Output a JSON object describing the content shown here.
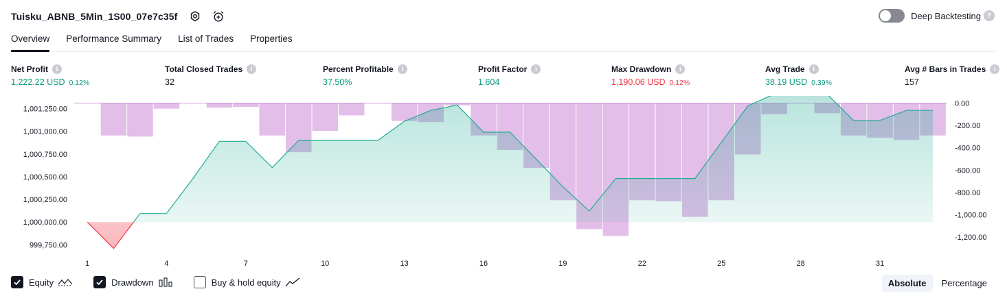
{
  "header": {
    "title": "Tuisku_ABNB_5Min_1S00_07e7c35f",
    "settings_icon": "gear-icon",
    "alert_icon": "alarm-clock-plus-icon",
    "deep_backtesting_label": "Deep Backtesting",
    "deep_backtesting_enabled": false,
    "help_glyph": "?"
  },
  "tabs": [
    {
      "label": "Overview",
      "active": true
    },
    {
      "label": "Performance Summary",
      "active": false
    },
    {
      "label": "List of Trades",
      "active": false
    },
    {
      "label": "Properties",
      "active": false
    }
  ],
  "metrics": [
    {
      "label": "Net Profit",
      "value": "1,222.22 USD",
      "pct": "0.12%",
      "color": "green"
    },
    {
      "label": "Total Closed Trades",
      "value": "32",
      "pct": "",
      "color": "dark"
    },
    {
      "label": "Percent Profitable",
      "value": "37.50%",
      "pct": "",
      "color": "green"
    },
    {
      "label": "Profit Factor",
      "value": "1.604",
      "pct": "",
      "color": "green"
    },
    {
      "label": "Max Drawdown",
      "value": "1,190.06 USD",
      "pct": "0.12%",
      "color": "red"
    },
    {
      "label": "Avg Trade",
      "value": "38.19 USD",
      "pct": "0.39%",
      "color": "green"
    },
    {
      "label": "Avg # Bars in Trades",
      "value": "157",
      "pct": "",
      "color": "dark"
    }
  ],
  "chart_data": {
    "type": "line",
    "x_ticks": [
      1,
      4,
      7,
      10,
      13,
      16,
      19,
      22,
      25,
      28,
      31
    ],
    "x_range": [
      1,
      33
    ],
    "left_axis": {
      "ticks": [
        "1,001,250.00",
        "1,001,000.00",
        "1,000,750.00",
        "1,000,500.00",
        "1,000,250.00",
        "1,000,000.00",
        "999,750.00"
      ],
      "tick_values": [
        1001250,
        1001000,
        1000750,
        1000500,
        1000250,
        1000000,
        999750
      ],
      "range": [
        999700,
        1001360
      ]
    },
    "right_axis": {
      "ticks": [
        "0.00",
        "-200.00",
        "-400.00",
        "-600.00",
        "-800.00",
        "-1,000.00",
        "-1,200.00"
      ],
      "tick_values": [
        0,
        -200,
        -400,
        -600,
        -800,
        -1000,
        -1200
      ],
      "range": [
        -1310,
        40
      ]
    },
    "baseline": 1000000,
    "series": [
      {
        "name": "Equity",
        "axis": "left",
        "color": "#22ab94",
        "x": [
          1,
          2,
          3,
          4,
          5,
          6,
          7,
          8,
          9,
          10,
          11,
          12,
          13,
          14,
          15,
          16,
          17,
          18,
          19,
          20,
          21,
          22,
          23,
          24,
          25,
          26,
          27,
          28,
          29,
          30,
          31,
          32,
          33
        ],
        "values": [
          1000000,
          999710,
          1000095,
          1000095,
          1000480,
          1000890,
          1000890,
          1000600,
          1000900,
          1000900,
          1000900,
          1000900,
          1001110,
          1001230,
          1001290,
          1000990,
          1000990,
          1000690,
          1000390,
          1000120,
          1000480,
          1000480,
          1000480,
          1000480,
          1000880,
          1001280,
          1001410,
          1001410,
          1001410,
          1001120,
          1001120,
          1001230,
          1001230
        ]
      },
      {
        "name": "Drawdown",
        "axis": "right",
        "color": "#ce93d8",
        "x": [
          2,
          3,
          4,
          5,
          6,
          7,
          8,
          9,
          10,
          11,
          12,
          13,
          14,
          15,
          16,
          17,
          18,
          19,
          20,
          21,
          22,
          23,
          24,
          25,
          26,
          27,
          28,
          29,
          30,
          31,
          32,
          33
        ],
        "values": [
          -290,
          -300,
          -50,
          0,
          -40,
          -35,
          -290,
          -440,
          -250,
          -110,
          0,
          -160,
          -170,
          -20,
          -290,
          -420,
          -580,
          -870,
          -1130,
          -1190,
          -870,
          -880,
          -1020,
          -870,
          -460,
          -100,
          0,
          -90,
          -290,
          -310,
          -330,
          -290
        ]
      }
    ]
  },
  "legend": [
    {
      "label": "Equity",
      "checked": true,
      "icon": "equity-wave-icon"
    },
    {
      "label": "Drawdown",
      "checked": true,
      "icon": "drawdown-bars-icon"
    },
    {
      "label": "Buy & hold equity",
      "checked": false,
      "icon": "buy-hold-line-icon"
    }
  ],
  "mode": {
    "absolute_label": "Absolute",
    "percentage_label": "Percentage",
    "selected": "Absolute"
  }
}
